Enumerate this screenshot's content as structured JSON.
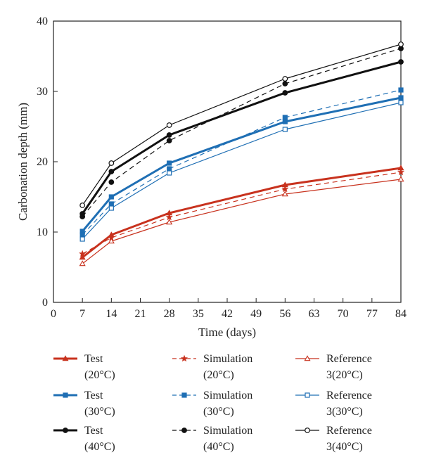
{
  "chart_data": {
    "type": "line",
    "xlabel": "Time (days)",
    "ylabel": "Carbonation depth (mm)",
    "xlim": [
      0,
      84
    ],
    "ylim": [
      0,
      40
    ],
    "xticks": [
      0,
      7,
      14,
      21,
      28,
      35,
      42,
      49,
      56,
      63,
      70,
      77,
      84
    ],
    "yticks": [
      0,
      10,
      20,
      30,
      40
    ],
    "grid": false,
    "legend_position": "bottom",
    "x": [
      7,
      14,
      28,
      56,
      84
    ],
    "series": [
      {
        "name": "Test (20°C)",
        "legend_lines": [
          "Test",
          "(20°C)"
        ],
        "values": [
          6.4,
          9.6,
          12.7,
          16.7,
          19.1
        ],
        "color": "#c8321e",
        "style": "solid",
        "width": 3,
        "marker": "triangle",
        "filled": true
      },
      {
        "name": "Simulation (20°C)",
        "legend_lines": [
          "Simulation",
          "(20°C)"
        ],
        "values": [
          6.9,
          9.2,
          12.1,
          16.1,
          18.5
        ],
        "color": "#c8321e",
        "style": "dashed",
        "width": 1.2,
        "marker": "star",
        "filled": true
      },
      {
        "name": "Reference 3(20°C)",
        "legend_lines": [
          "Reference",
          "3(20°C)"
        ],
        "values": [
          5.5,
          8.7,
          11.4,
          15.4,
          17.5
        ],
        "color": "#c8321e",
        "style": "solid",
        "width": 1.2,
        "marker": "triangle",
        "filled": false
      },
      {
        "name": "Test (30°C)",
        "legend_lines": [
          "Test",
          "(30°C)"
        ],
        "values": [
          10.1,
          15.0,
          19.8,
          25.7,
          29.1
        ],
        "color": "#1f6fb4",
        "style": "solid",
        "width": 3,
        "marker": "square",
        "filled": true
      },
      {
        "name": "Simulation (30°C)",
        "legend_lines": [
          "Simulation",
          "(30°C)"
        ],
        "values": [
          9.6,
          14.0,
          19.0,
          26.3,
          30.2
        ],
        "color": "#1f6fb4",
        "style": "dashed",
        "width": 1.2,
        "marker": "square",
        "filled": true
      },
      {
        "name": "Reference 3(30°C)",
        "legend_lines": [
          "Reference",
          "3(30°C)"
        ],
        "values": [
          9.0,
          13.4,
          18.4,
          24.6,
          28.4
        ],
        "color": "#1f6fb4",
        "style": "solid",
        "width": 1.2,
        "marker": "square",
        "filled": false
      },
      {
        "name": "Test (40°C)",
        "legend_lines": [
          "Test",
          "(40°C)"
        ],
        "values": [
          12.6,
          18.6,
          23.8,
          29.8,
          34.2
        ],
        "color": "#111111",
        "style": "solid",
        "width": 3,
        "marker": "circle",
        "filled": true
      },
      {
        "name": "Simulation (40°C)",
        "legend_lines": [
          "Simulation",
          "(40°C)"
        ],
        "values": [
          12.2,
          17.1,
          23.0,
          31.1,
          36.1
        ],
        "color": "#111111",
        "style": "dashed",
        "width": 1.2,
        "marker": "circle",
        "filled": true
      },
      {
        "name": "Reference 3(40°C)",
        "legend_lines": [
          "Reference",
          "3(40°C)"
        ],
        "values": [
          13.8,
          19.8,
          25.2,
          31.8,
          36.7
        ],
        "color": "#111111",
        "style": "solid",
        "width": 1.2,
        "marker": "circle",
        "filled": false
      }
    ]
  }
}
